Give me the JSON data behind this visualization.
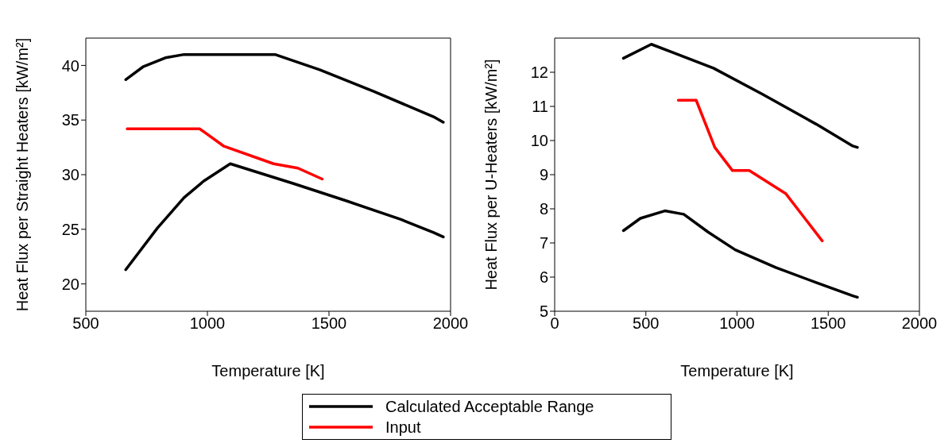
{
  "chart_data": [
    {
      "type": "line",
      "xlabel": "Temperature [K]",
      "ylabel": "Heat Flux per Straight Heaters [kW/m²]",
      "xlim": [
        500,
        2000
      ],
      "xticks": [
        500,
        1000,
        1500,
        2000
      ],
      "ylim": [
        17.5,
        42.5
      ],
      "yticks": [
        20,
        25,
        30,
        35,
        40
      ],
      "legend": "bottom",
      "marker": "none",
      "line_style": "solid",
      "series": [
        {
          "name": "Calculated Acceptable Range",
          "color": "#000000",
          "x": [
            664,
            737,
            827,
            904,
            1278,
            1462,
            1686,
            1930,
            1970
          ],
          "values": [
            38.7,
            39.9,
            40.7,
            41.0,
            41.0,
            39.6,
            37.6,
            35.3,
            34.8
          ]
        },
        {
          "color": "#000000",
          "x": [
            664,
            794,
            904,
            984,
            1094,
            1352,
            1572,
            1796,
            1930,
            1970
          ],
          "values": [
            21.3,
            25.1,
            27.9,
            29.4,
            31.0,
            29.2,
            27.6,
            25.9,
            24.7,
            24.3
          ]
        },
        {
          "name": "Input",
          "color": "#ff0000",
          "x": [
            670,
            968,
            1068,
            1272,
            1372,
            1472
          ],
          "values": [
            34.2,
            34.2,
            32.6,
            31.0,
            30.6,
            29.6
          ]
        }
      ]
    },
    {
      "type": "line",
      "xlabel": "Temperature [K]",
      "ylabel": "Heat Flux per U-Heaters [kW/m²]",
      "xlim": [
        0,
        2000
      ],
      "xticks": [
        0,
        500,
        1000,
        1500,
        2000
      ],
      "ylim": [
        5,
        13
      ],
      "yticks": [
        5,
        6,
        7,
        8,
        9,
        10,
        11,
        12
      ],
      "legend": "bottom",
      "marker": "none",
      "line_style": "solid",
      "series": [
        {
          "name": "Calculated Acceptable Range",
          "color": "#000000",
          "x": [
            377,
            530,
            648,
            871,
            1138,
            1434,
            1635,
            1660
          ],
          "values": [
            12.41,
            12.82,
            12.58,
            12.12,
            11.36,
            10.48,
            9.84,
            9.8
          ]
        },
        {
          "color": "#000000",
          "x": [
            377,
            470,
            604,
            708,
            841,
            990,
            1212,
            1434,
            1635,
            1660
          ],
          "values": [
            7.36,
            7.72,
            7.94,
            7.84,
            7.32,
            6.8,
            6.28,
            5.84,
            5.45,
            5.41
          ]
        },
        {
          "name": "Input",
          "color": "#ff0000",
          "x": [
            678,
            776,
            878,
            975,
            1067,
            1268,
            1467
          ],
          "values": [
            11.18,
            11.18,
            9.8,
            9.12,
            9.12,
            8.44,
            7.06
          ]
        }
      ]
    }
  ]
}
